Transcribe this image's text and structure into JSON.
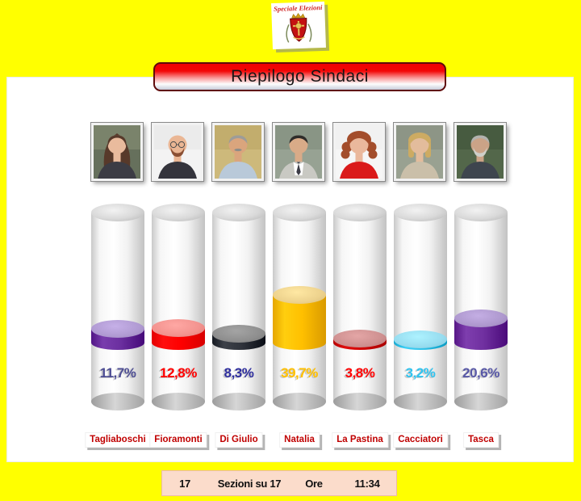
{
  "page": {
    "background_color": "#FFFF00"
  },
  "badge": {
    "title": "Speciale Elezioni",
    "icon": "coat-of-arms-shield"
  },
  "banner": {
    "title": "Riepilogo Sindaci"
  },
  "footer": {
    "sections_count": "17",
    "sections_label": "Sezioni su 17",
    "time_label": "Ore",
    "time_value": "11:34"
  },
  "candidates": [
    {
      "name": "Tagliaboschi",
      "pct_label": "11,7%",
      "value": 11.7,
      "colors": {
        "band": "#6B2F9F",
        "band_top": "#B09AD2",
        "pct_text": "#4D4D93"
      },
      "photo": {
        "bg": "#66705c",
        "bg2": "#8a9478",
        "hair_style": "long",
        "hair_color": "#57392a",
        "skin_color": "#e9bb9d",
        "shirt_color": "#3c3c44"
      }
    },
    {
      "name": "Fioramonti",
      "pct_label": "12,8%",
      "value": 12.8,
      "colors": {
        "band": "#FE0000",
        "band_top": "#F2928E",
        "pct_text": "#FF0000"
      },
      "photo": {
        "bg": "#f3f3f3",
        "bg2": "#e4e4e4",
        "hair_style": "bald",
        "hair_color": "#8a4f33",
        "skin_color": "#eab694",
        "shirt_color": "#34343c",
        "beard_color": "#8a4f33",
        "glasses": true
      }
    },
    {
      "name": "Di Giulio",
      "pct_label": "8,3%",
      "value": 8.3,
      "colors": {
        "band": "#2F333B",
        "band_top": "#8E8E8E",
        "pct_text": "#2E2E9E"
      },
      "photo": {
        "bg": "#cdb97b",
        "bg2": "#b9a463",
        "hair_style": "short",
        "hair_color": "#9d9c98",
        "skin_color": "#daa57d",
        "shirt_color": "#b9c9d9",
        "mustache_color": "#8d8d89"
      }
    },
    {
      "name": "Natalia",
      "pct_label": "39,7%",
      "value": 39.7,
      "colors": {
        "band": "#FFC000",
        "band_top": "#EDD28D",
        "pct_text": "#FFC000"
      },
      "photo": {
        "bg": "#97a293",
        "bg2": "#7d8a7a",
        "hair_style": "short",
        "hair_color": "#2e2c2a",
        "skin_color": "#d9ab88",
        "shirt_color": "#c9c9c3",
        "tie_color": "#3c3c46"
      }
    },
    {
      "name": "La Pastina",
      "pct_label": "3,8%",
      "value": 3.8,
      "colors": {
        "band": "#D10000",
        "band_top": "#CE9090",
        "pct_text": "#FF0000"
      },
      "photo": {
        "bg": "#f6f6f6",
        "bg2": "#ececec",
        "hair_style": "curly",
        "hair_color": "#a34d2b",
        "skin_color": "#eab89c",
        "shirt_color": "#da1a1a"
      }
    },
    {
      "name": "Cacciatori",
      "pct_label": "3,2%",
      "value": 3.2,
      "colors": {
        "band": "#2FC2E9",
        "band_top": "#97DCEF",
        "pct_text": "#2FC3EF"
      },
      "photo": {
        "bg": "#99a191",
        "bg2": "#848c7e",
        "hair_style": "bob",
        "hair_color": "#cdab62",
        "skin_color": "#e3bc9c",
        "shirt_color": "#cabfa9"
      }
    },
    {
      "name": "Tasca",
      "pct_label": "20,6%",
      "value": 20.6,
      "colors": {
        "band": "#7030A0",
        "band_top": "#AE98CE",
        "pct_text": "#5757A6"
      },
      "photo": {
        "bg": "#53674a",
        "bg2": "#3e5238",
        "hair_style": "short",
        "hair_color": "#b2b2ae",
        "skin_color": "#cba387",
        "shirt_color": "#3e454e",
        "beard_color": "#cfcfc9"
      }
    }
  ],
  "chart_data": {
    "type": "bar",
    "title": "Riepilogo Sindaci",
    "categories": [
      "Tagliaboschi",
      "Fioramonti",
      "Di Giulio",
      "Natalia",
      "La Pastina",
      "Cacciatori",
      "Tasca"
    ],
    "values": [
      11.7,
      12.8,
      8.3,
      39.7,
      3.8,
      3.2,
      20.6
    ],
    "value_labels": [
      "11,7%",
      "12,8%",
      "8,3%",
      "39,7%",
      "3,8%",
      "3,2%",
      "20,6%"
    ],
    "series_colors": [
      "#6B2F9F",
      "#FE0000",
      "#2F333B",
      "#FFC000",
      "#D10000",
      "#2FC2E9",
      "#7030A0"
    ],
    "unit": "%",
    "ylim": [
      0,
      100
    ],
    "legend": "none",
    "grid": false,
    "style": "3d-cylinder-gauges",
    "status": {
      "sections_counted": 17,
      "sections_total": 17,
      "time": "11:34"
    }
  }
}
